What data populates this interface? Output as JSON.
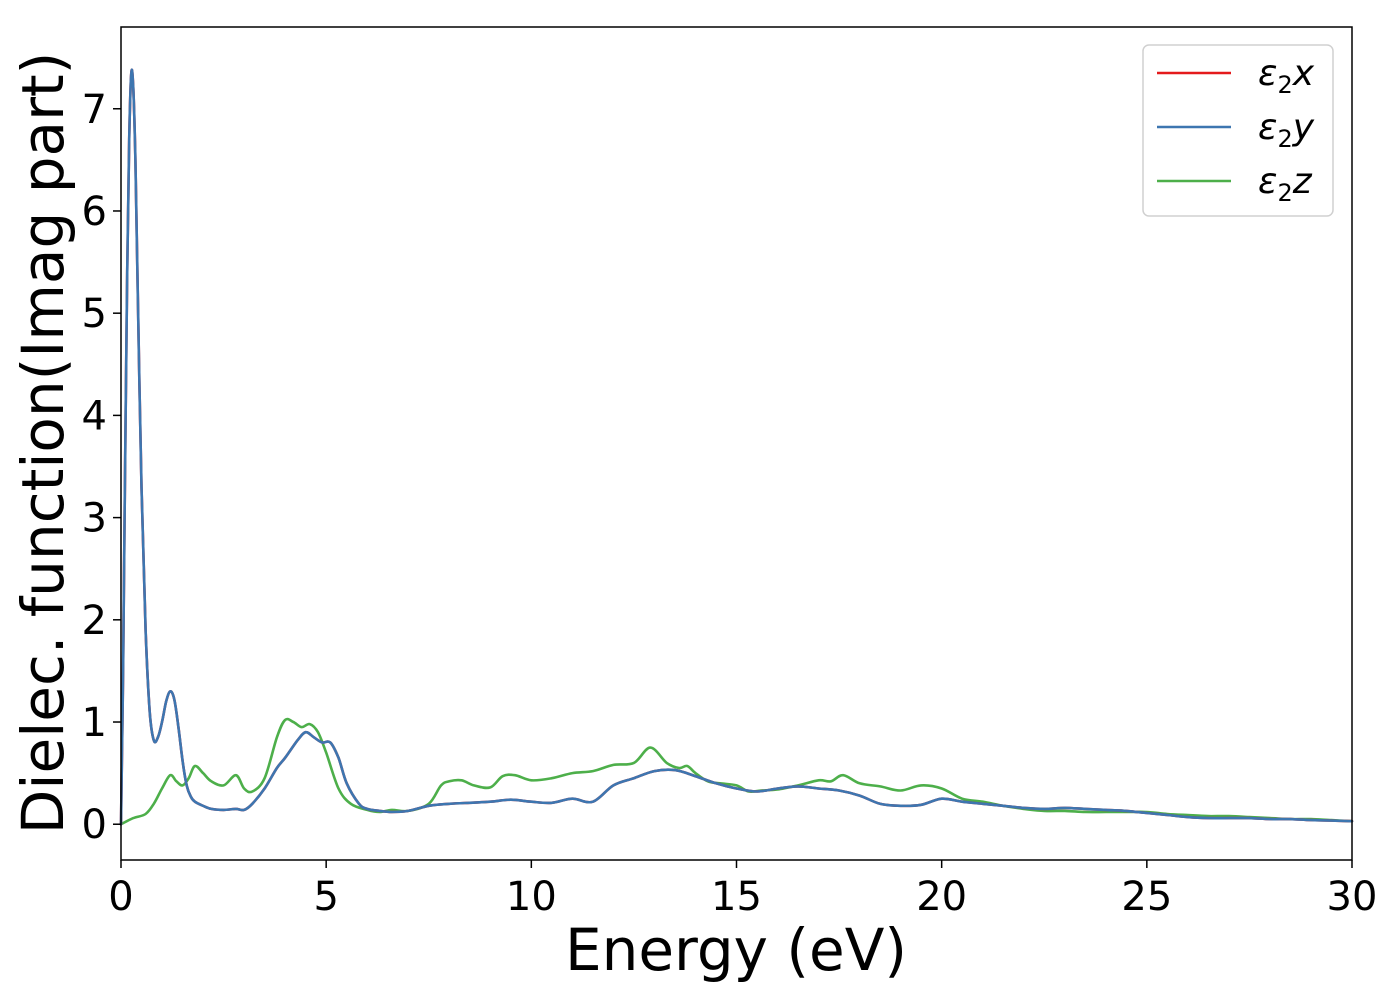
{
  "chart_data": {
    "type": "line",
    "xlabel": "Energy (eV)",
    "ylabel": "Dielec. function(Imag part)",
    "xlim": [
      0,
      30
    ],
    "ylim": [
      -0.35,
      7.8
    ],
    "xticks": [
      0,
      5,
      10,
      15,
      20,
      25,
      30
    ],
    "xtick_labels": [
      "0",
      "5",
      "10",
      "15",
      "20",
      "25",
      "30"
    ],
    "yticks": [
      0,
      1,
      2,
      3,
      4,
      5,
      6,
      7
    ],
    "ytick_labels": [
      "0",
      "1",
      "2",
      "3",
      "4",
      "5",
      "6",
      "7"
    ],
    "grid": false,
    "legend_position": "top-right",
    "series": [
      {
        "name": "x",
        "legend_symbol": "ε",
        "legend_sub": "2",
        "legend_var": "x",
        "color": "#e41a1c",
        "x": [
          0,
          0.05,
          0.1,
          0.15,
          0.2,
          0.25,
          0.3,
          0.35,
          0.4,
          0.5,
          0.6,
          0.7,
          0.8,
          0.9,
          1.0,
          1.1,
          1.2,
          1.3,
          1.4,
          1.5,
          1.6,
          1.7,
          1.8,
          2.0,
          2.2,
          2.5,
          2.8,
          3.0,
          3.2,
          3.5,
          3.8,
          4.0,
          4.3,
          4.5,
          4.7,
          4.9,
          5.1,
          5.3,
          5.5,
          5.8,
          6.0,
          6.3,
          6.6,
          7.0,
          7.5,
          8.0,
          8.5,
          9.0,
          9.5,
          10.0,
          10.5,
          11.0,
          11.5,
          12.0,
          12.5,
          13.0,
          13.5,
          14.0,
          14.5,
          15.0,
          15.5,
          16.0,
          16.5,
          17.0,
          17.5,
          18.0,
          18.5,
          19.0,
          19.5,
          20.0,
          20.5,
          21.0,
          21.5,
          22.0,
          22.5,
          23.0,
          23.5,
          24.0,
          24.5,
          25.0,
          25.5,
          26.0,
          26.5,
          27.0,
          27.5,
          28.0,
          28.5,
          29.0,
          29.5,
          30.0
        ],
        "y": [
          0,
          1.5,
          3.5,
          5.4,
          6.7,
          7.35,
          7.2,
          6.5,
          5.4,
          3.3,
          1.9,
          1.1,
          0.82,
          0.85,
          1.0,
          1.2,
          1.3,
          1.22,
          0.95,
          0.62,
          0.38,
          0.27,
          0.22,
          0.18,
          0.15,
          0.14,
          0.15,
          0.14,
          0.2,
          0.35,
          0.55,
          0.65,
          0.82,
          0.9,
          0.85,
          0.8,
          0.8,
          0.65,
          0.4,
          0.2,
          0.15,
          0.13,
          0.12,
          0.13,
          0.18,
          0.2,
          0.21,
          0.22,
          0.24,
          0.22,
          0.21,
          0.25,
          0.22,
          0.38,
          0.45,
          0.52,
          0.53,
          0.47,
          0.4,
          0.35,
          0.32,
          0.35,
          0.37,
          0.35,
          0.33,
          0.28,
          0.2,
          0.18,
          0.19,
          0.25,
          0.22,
          0.2,
          0.18,
          0.16,
          0.15,
          0.16,
          0.15,
          0.14,
          0.13,
          0.11,
          0.09,
          0.07,
          0.06,
          0.06,
          0.06,
          0.05,
          0.05,
          0.04,
          0.035,
          0.03
        ]
      },
      {
        "name": "y",
        "legend_symbol": "ε",
        "legend_sub": "2",
        "legend_var": "y",
        "color": "#3d76b0",
        "x": [
          0,
          0.05,
          0.1,
          0.15,
          0.2,
          0.25,
          0.3,
          0.35,
          0.4,
          0.5,
          0.6,
          0.7,
          0.8,
          0.9,
          1.0,
          1.1,
          1.2,
          1.3,
          1.4,
          1.5,
          1.6,
          1.7,
          1.8,
          2.0,
          2.2,
          2.5,
          2.8,
          3.0,
          3.2,
          3.5,
          3.8,
          4.0,
          4.3,
          4.5,
          4.7,
          4.9,
          5.1,
          5.3,
          5.5,
          5.8,
          6.0,
          6.3,
          6.6,
          7.0,
          7.5,
          8.0,
          8.5,
          9.0,
          9.5,
          10.0,
          10.5,
          11.0,
          11.5,
          12.0,
          12.5,
          13.0,
          13.5,
          14.0,
          14.5,
          15.0,
          15.5,
          16.0,
          16.5,
          17.0,
          17.5,
          18.0,
          18.5,
          19.0,
          19.5,
          20.0,
          20.5,
          21.0,
          21.5,
          22.0,
          22.5,
          23.0,
          23.5,
          24.0,
          24.5,
          25.0,
          25.5,
          26.0,
          26.5,
          27.0,
          27.5,
          28.0,
          28.5,
          29.0,
          29.5,
          30.0
        ],
        "y": [
          0,
          1.5,
          3.5,
          5.4,
          6.7,
          7.35,
          7.2,
          6.5,
          5.4,
          3.3,
          1.9,
          1.1,
          0.82,
          0.85,
          1.0,
          1.2,
          1.3,
          1.22,
          0.95,
          0.62,
          0.38,
          0.27,
          0.22,
          0.18,
          0.15,
          0.14,
          0.15,
          0.14,
          0.2,
          0.35,
          0.55,
          0.65,
          0.82,
          0.9,
          0.85,
          0.8,
          0.8,
          0.65,
          0.4,
          0.2,
          0.15,
          0.13,
          0.12,
          0.13,
          0.18,
          0.2,
          0.21,
          0.22,
          0.24,
          0.22,
          0.21,
          0.25,
          0.22,
          0.38,
          0.45,
          0.52,
          0.53,
          0.47,
          0.4,
          0.35,
          0.32,
          0.35,
          0.37,
          0.35,
          0.33,
          0.28,
          0.2,
          0.18,
          0.19,
          0.25,
          0.22,
          0.2,
          0.18,
          0.16,
          0.15,
          0.16,
          0.15,
          0.14,
          0.13,
          0.11,
          0.09,
          0.07,
          0.06,
          0.06,
          0.06,
          0.05,
          0.05,
          0.04,
          0.035,
          0.03
        ]
      },
      {
        "name": "z",
        "legend_symbol": "ε",
        "legend_sub": "2",
        "legend_var": "z",
        "color": "#4daf4a",
        "x": [
          0,
          0.3,
          0.6,
          0.8,
          1.0,
          1.2,
          1.35,
          1.5,
          1.65,
          1.8,
          2.0,
          2.2,
          2.5,
          2.8,
          3.0,
          3.2,
          3.5,
          3.8,
          4.0,
          4.2,
          4.4,
          4.6,
          4.8,
          5.0,
          5.3,
          5.6,
          6.0,
          6.3,
          6.6,
          7.0,
          7.5,
          7.8,
          8.0,
          8.3,
          8.6,
          9.0,
          9.3,
          9.6,
          10.0,
          10.5,
          11.0,
          11.5,
          12.0,
          12.5,
          12.9,
          13.3,
          13.6,
          13.8,
          14.0,
          14.3,
          14.6,
          15.0,
          15.3,
          15.6,
          16.0,
          16.5,
          17.0,
          17.3,
          17.6,
          18.0,
          18.5,
          19.0,
          19.5,
          20.0,
          20.5,
          21.0,
          21.5,
          22.0,
          22.5,
          23.0,
          23.5,
          24.0,
          24.5,
          25.0,
          25.5,
          26.0,
          26.5,
          27.0,
          27.5,
          28.0,
          28.5,
          29.0,
          29.5,
          30.0
        ],
        "y": [
          0,
          0.06,
          0.1,
          0.2,
          0.35,
          0.48,
          0.42,
          0.38,
          0.45,
          0.57,
          0.5,
          0.42,
          0.38,
          0.48,
          0.35,
          0.32,
          0.45,
          0.85,
          1.02,
          1.0,
          0.95,
          0.98,
          0.9,
          0.7,
          0.35,
          0.2,
          0.14,
          0.12,
          0.14,
          0.13,
          0.2,
          0.38,
          0.42,
          0.43,
          0.38,
          0.36,
          0.47,
          0.48,
          0.43,
          0.45,
          0.5,
          0.52,
          0.58,
          0.6,
          0.75,
          0.6,
          0.55,
          0.57,
          0.5,
          0.42,
          0.4,
          0.38,
          0.32,
          0.33,
          0.34,
          0.38,
          0.43,
          0.42,
          0.48,
          0.4,
          0.37,
          0.33,
          0.38,
          0.35,
          0.25,
          0.22,
          0.18,
          0.15,
          0.13,
          0.13,
          0.12,
          0.12,
          0.12,
          0.12,
          0.1,
          0.09,
          0.08,
          0.08,
          0.07,
          0.06,
          0.05,
          0.05,
          0.04,
          0.03
        ]
      }
    ]
  }
}
